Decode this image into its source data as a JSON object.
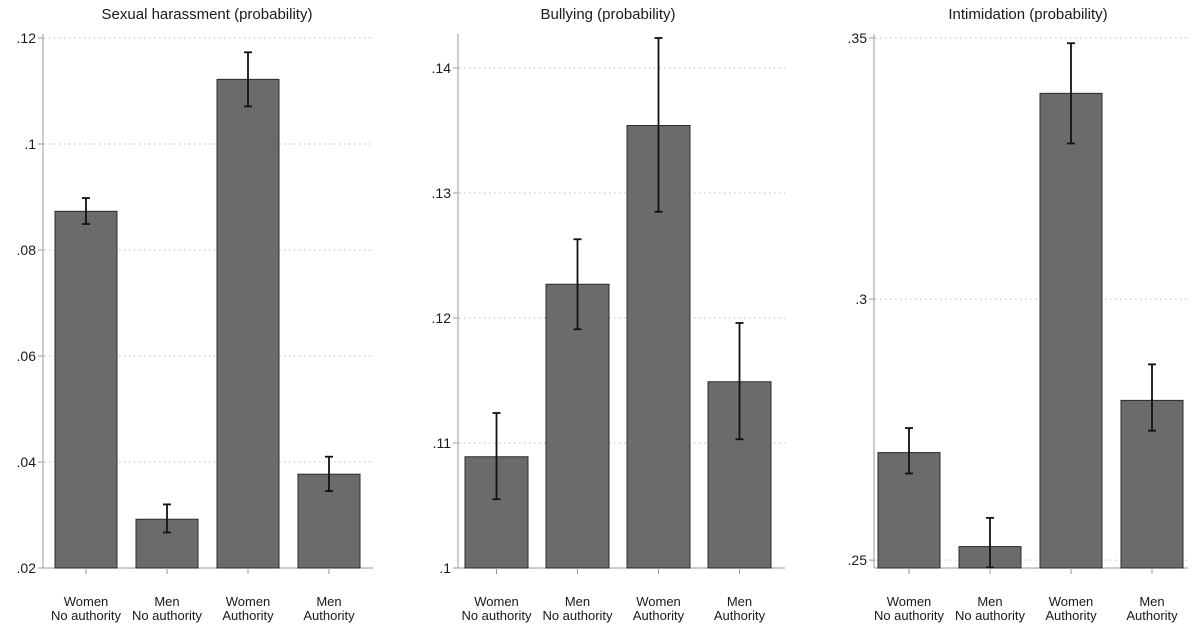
{
  "chart_data": [
    {
      "type": "bar",
      "title": "Sexual harassment (probability)",
      "xlabel": "",
      "ylabel": "",
      "categories": [
        [
          "Women",
          "No authority"
        ],
        [
          "Men",
          "No authority"
        ],
        [
          "Women",
          "Authority"
        ],
        [
          "Men",
          "Authority"
        ]
      ],
      "values": [
        0.0873,
        0.0292,
        0.1122,
        0.0377
      ],
      "error_low": [
        0.0849,
        0.0267,
        0.1071,
        0.0345
      ],
      "error_high": [
        0.0898,
        0.032,
        0.1173,
        0.041
      ],
      "ylim": [
        0.02,
        0.12
      ],
      "yticks": [
        0.02,
        0.04,
        0.06,
        0.08,
        0.1,
        0.12
      ],
      "ytick_labels": [
        ".02",
        ".04",
        ".06",
        ".08",
        ".1",
        ".12"
      ],
      "grid": true,
      "colors": {
        "bar": "#6b6b6b",
        "bar_edge": "#2b2b2b",
        "error_bar": "#111111",
        "grid": "#bdbdbd"
      }
    },
    {
      "type": "bar",
      "title": "Bullying (probability)",
      "xlabel": "",
      "ylabel": "",
      "categories": [
        [
          "Women",
          "No authority"
        ],
        [
          "Men",
          "No authority"
        ],
        [
          "Women",
          "Authority"
        ],
        [
          "Men",
          "Authority"
        ]
      ],
      "values": [
        0.1089,
        0.1227,
        0.1354,
        0.1149
      ],
      "error_low": [
        0.1055,
        0.1191,
        0.1285,
        0.1103
      ],
      "error_high": [
        0.1124,
        0.1263,
        0.1424,
        0.1196
      ],
      "ylim": [
        0.1,
        0.1424
      ],
      "yticks": [
        0.1,
        0.11,
        0.12,
        0.13,
        0.14
      ],
      "ytick_labels": [
        ".1",
        ".11",
        ".12",
        ".13",
        ".14"
      ],
      "grid": true,
      "colors": {
        "bar": "#6b6b6b",
        "bar_edge": "#2b2b2b",
        "error_bar": "#111111",
        "grid": "#bdbdbd"
      }
    },
    {
      "type": "bar",
      "title": "Intimidation (probability)",
      "xlabel": "",
      "ylabel": "",
      "categories": [
        [
          "Women",
          "No authority"
        ],
        [
          "Men",
          "No authority"
        ],
        [
          "Women",
          "Authority"
        ],
        [
          "Men",
          "Authority"
        ]
      ],
      "values": [
        0.2706,
        0.2526,
        0.3394,
        0.2806
      ],
      "error_low": [
        0.2666,
        0.2486,
        0.3298,
        0.2748
      ],
      "error_high": [
        0.2753,
        0.2581,
        0.349,
        0.2875
      ],
      "ylim": [
        0.2485,
        0.35
      ],
      "yticks": [
        0.25,
        0.3,
        0.35
      ],
      "ytick_labels": [
        ".25",
        ".3",
        ".35"
      ],
      "grid": true,
      "colors": {
        "bar": "#6b6b6b",
        "bar_edge": "#2b2b2b",
        "error_bar": "#111111",
        "grid": "#bdbdbd"
      }
    }
  ]
}
